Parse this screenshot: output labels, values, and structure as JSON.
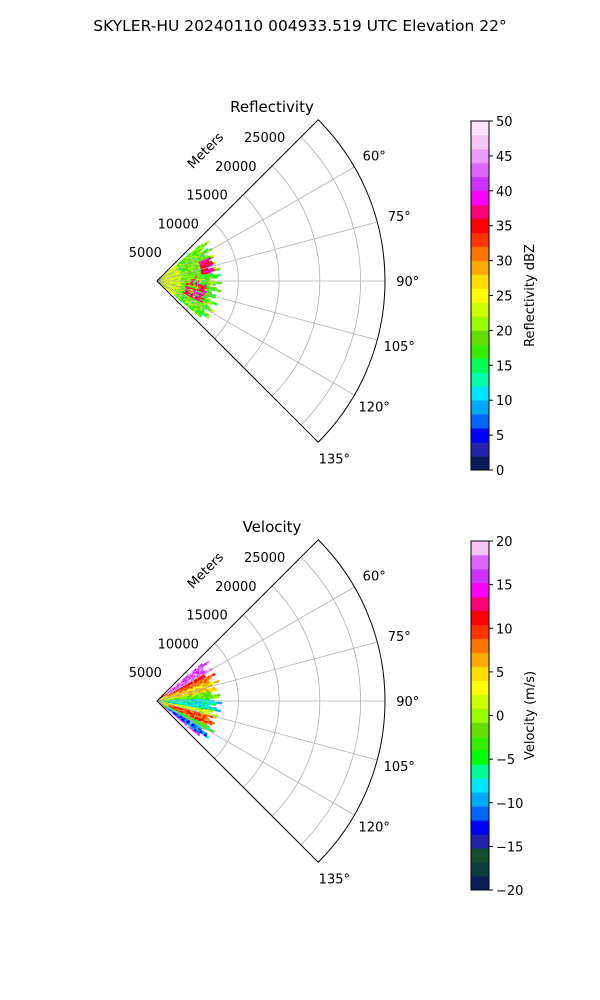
{
  "figure": {
    "suptitle": "SKYLER-HU  20240110  004933.519 UTC Elevation 22°"
  },
  "chart_data": [
    {
      "type": "heatmap",
      "subtype": "polar-sector (PPI)",
      "title": "Reflectivity",
      "range_label": "Meters",
      "range_ticks": [
        5000,
        10000,
        15000,
        20000,
        25000
      ],
      "range_tick_labels": [
        "5000",
        "10000",
        "15000",
        "20000",
        "25000"
      ],
      "range_max": 28000,
      "azimuth_range_deg": [
        45,
        135
      ],
      "azimuth_ticks": [
        60,
        75,
        90,
        105,
        120,
        135
      ],
      "azimuth_tick_labels": [
        "60°",
        "75°",
        "90°",
        "105°",
        "120°",
        "135°"
      ],
      "grid": true,
      "data_extent_m": 8000,
      "observations": [
        {
          "region": "bulk of echo, 0–8000 m",
          "value_dbz": "18–25"
        },
        {
          "region": "arc near 6000–7000 m, azimuth 68–80°",
          "value_dbz": "35–40"
        },
        {
          "region": "band near 4000–6000 m, azimuth 95–115°",
          "value_dbz": "35–40"
        },
        {
          "region": "near radar, 0–3000 m",
          "value_dbz": "22–28"
        }
      ],
      "colorbar": {
        "label": "Reflectivity dBZ",
        "range": [
          0,
          50
        ],
        "ticks": [
          0,
          5,
          10,
          15,
          20,
          25,
          30,
          35,
          40,
          45,
          50
        ],
        "tick_labels": [
          "0",
          "5",
          "10",
          "15",
          "20",
          "25",
          "30",
          "35",
          "40",
          "45",
          "50"
        ],
        "colors": [
          "#0a1e5c",
          "#2222aa",
          "#0000ff",
          "#0066ff",
          "#00aaff",
          "#00e5ff",
          "#00ffaa",
          "#00ff55",
          "#33ee00",
          "#66dd00",
          "#99ff00",
          "#ccff00",
          "#ffff00",
          "#ffdd00",
          "#ffaa00",
          "#ff7700",
          "#ff3300",
          "#ff0000",
          "#ff0077",
          "#ff00ff",
          "#cc33ff",
          "#dd66ff",
          "#ee99ff",
          "#f5c5f5",
          "#fbe5fb"
        ]
      }
    },
    {
      "type": "heatmap",
      "subtype": "polar-sector (PPI)",
      "title": "Velocity",
      "range_label": "Meters",
      "range_ticks": [
        5000,
        10000,
        15000,
        20000,
        25000
      ],
      "range_tick_labels": [
        "5000",
        "10000",
        "15000",
        "20000",
        "25000"
      ],
      "range_max": 28000,
      "azimuth_range_deg": [
        45,
        135
      ],
      "azimuth_ticks": [
        60,
        75,
        90,
        105,
        120,
        135
      ],
      "azimuth_tick_labels": [
        "60°",
        "75°",
        "90°",
        "105°",
        "120°",
        "135°"
      ],
      "grid": true,
      "data_extent_m": 8000,
      "observations": [
        {
          "region": "azimuth 45–62°",
          "value_ms": "10–20"
        },
        {
          "region": "azimuth 62–82°",
          "value_ms": "0–8"
        },
        {
          "region": "azimuth 82–100°",
          "value_ms": "-10 to -5"
        },
        {
          "region": "azimuth 100–118°",
          "value_ms": "0–10"
        },
        {
          "region": "azimuth 118–130°",
          "value_ms": "-15 to -5"
        }
      ],
      "colorbar": {
        "label": "Velocity (m/s)",
        "range": [
          -20,
          20
        ],
        "ticks": [
          -20,
          -15,
          -10,
          -5,
          0,
          5,
          10,
          15,
          20
        ],
        "tick_labels": [
          "−20",
          "−15",
          "−10",
          "−5",
          "0",
          "5",
          "10",
          "15",
          "20"
        ],
        "colors": [
          "#0a1e5c",
          "#0b3d3d",
          "#114d2e",
          "#2222aa",
          "#0000ff",
          "#0066ff",
          "#00aaff",
          "#00e5ff",
          "#00ff99",
          "#00ff00",
          "#33ee00",
          "#66dd00",
          "#99ff00",
          "#ccff00",
          "#ffff00",
          "#ffdd00",
          "#ffaa00",
          "#ff7700",
          "#ff3300",
          "#ff0000",
          "#ff0077",
          "#ff00ff",
          "#cc33ff",
          "#dd66ff",
          "#f5c5f5"
        ]
      }
    }
  ]
}
